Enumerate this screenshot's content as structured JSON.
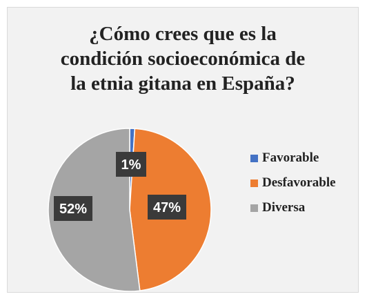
{
  "chart_data": {
    "type": "pie",
    "title_lines": [
      "¿Cómo crees que es la",
      "condición socioeconómica de",
      "la etnia gitana en España?"
    ],
    "categories": [
      "Favorable",
      "Desfavorable",
      "Diversa"
    ],
    "values": [
      1,
      47,
      52
    ],
    "labels": [
      "1%",
      "47%",
      "52%"
    ],
    "colors": [
      "#4472c4",
      "#ed7d31",
      "#a5a5a5"
    ],
    "start_angle": 0,
    "direction": "clockwise",
    "legend": "right"
  }
}
